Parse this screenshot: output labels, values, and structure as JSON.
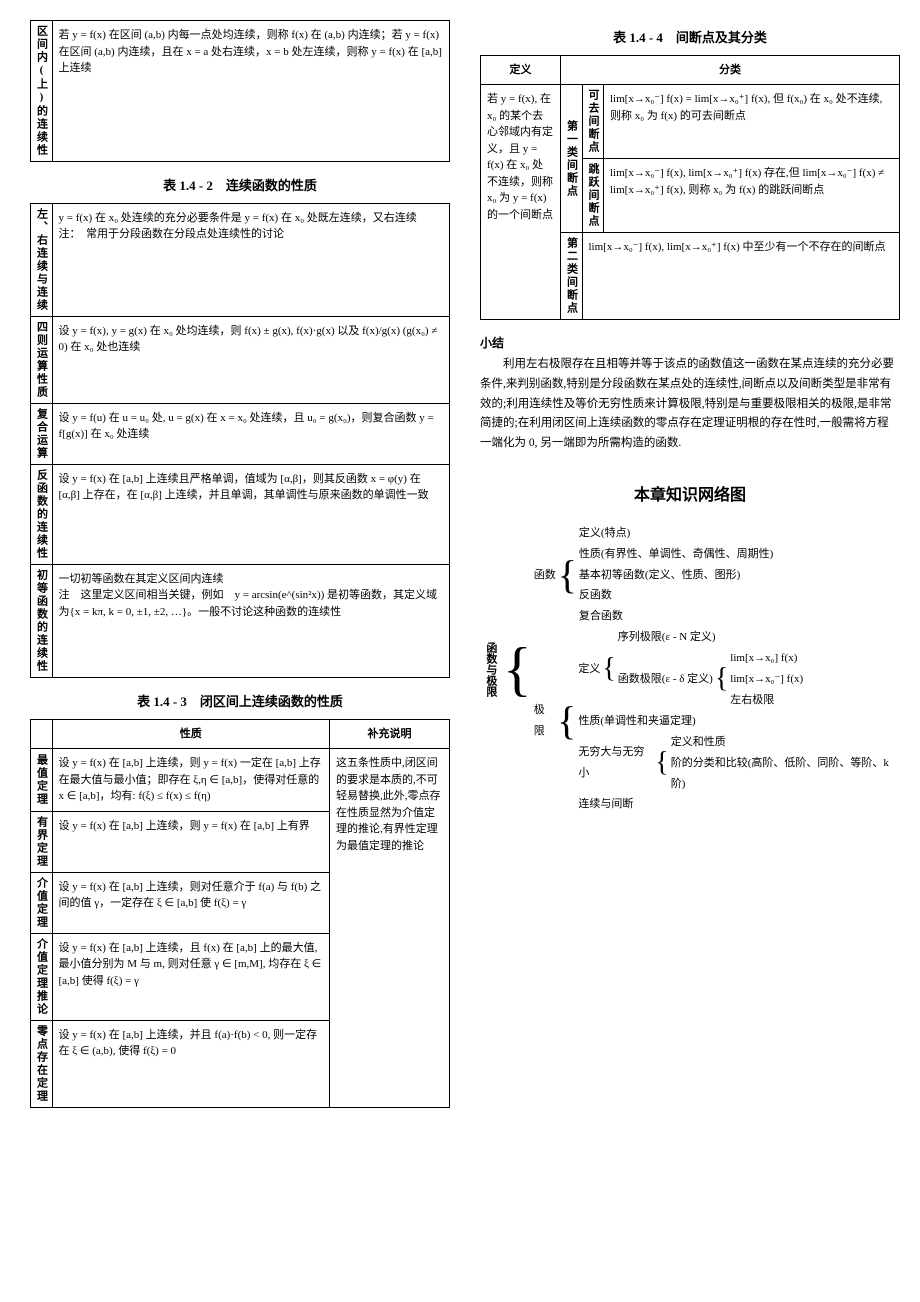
{
  "leftCol": {
    "t1": {
      "rowLabel": "区间内(上)的连续性",
      "content": "若 y = f(x) 在区间 (a,b) 内每一点处均连续，则称 f(x) 在 (a,b) 内连续；若 y = f(x) 在区间 (a,b) 内连续，且在 x = a 处右连续，x = b 处左连续，则称 y = f(x) 在 [a,b] 上连续"
    },
    "t2": {
      "caption": "表 1.4 - 2　连续函数的性质",
      "rows": [
        {
          "label": "左、右连续与连续",
          "content": "y = f(x) 在 x₀ 处连续的充分必要条件是 y = f(x) 在 x₀ 处既左连续，又右连续\n注：　常用于分段函数在分段点处连续性的讨论"
        },
        {
          "label": "四则运算性质",
          "content": "设 y = f(x), y = g(x) 在 x₀ 处均连续，则 f(x) ± g(x), f(x)·g(x) 以及 f(x)/g(x) (g(x₀) ≠ 0) 在 x₀ 处也连续"
        },
        {
          "label": "复合运算",
          "content": "设 y = f(u) 在 u = u₀ 处, u = g(x) 在 x = x₀ 处连续，且 u₀ = g(x₀)，则复合函数 y = f[g(x)] 在 x₀ 处连续"
        },
        {
          "label": "反函数的连续性",
          "content": "设 y = f(x) 在 [a,b] 上连续且严格单调，值域为 [α,β]，则其反函数 x = φ(y) 在 [α,β] 上存在，在 [α,β] 上连续，并且单调，其单调性与原来函数的单调性一致"
        },
        {
          "label": "初等函数的连续性",
          "content": "一切初等函数在其定义区间内连续\n注　这里定义区间相当关键，例如　y = arcsin(e^(sin²x)) 是初等函数，其定义域为{x = kπ, k = 0, ±1, ±2, …}。一般不讨论这种函数的连续性"
        }
      ]
    },
    "t3": {
      "caption": "表 1.4 - 3　闭区间上连续函数的性质",
      "headers": [
        "",
        "性质",
        "补充说明"
      ],
      "note": "这五条性质中,闭区间的要求是本质的,不可轻易替换,此外,零点存在性质显然为介值定理的推论,有界性定理为最值定理的推论",
      "rows": [
        {
          "label": "最值定理",
          "content": "设 y = f(x) 在 [a,b] 上连续，则 y = f(x) 一定在 [a,b] 上存在最大值与最小值；即存在 ξ,η ∈ [a,b]，使得对任意的 x ∈ [a,b]，均有: f(ξ) ≤ f(x) ≤ f(η)"
        },
        {
          "label": "有界定理",
          "content": "设 y = f(x) 在 [a,b] 上连续，则 y = f(x) 在 [a,b] 上有界"
        },
        {
          "label": "介值定理",
          "content": "设 y = f(x) 在 [a,b] 上连续，则对任意介于 f(a) 与 f(b) 之间的值 γ，一定存在 ξ ∈ [a,b] 使 f(ξ) = γ"
        },
        {
          "label": "介值定理推论",
          "content": "设 y = f(x) 在 [a,b] 上连续，且 f(x) 在 [a,b] 上的最大值,最小值分别为 M 与 m, 则对任意 γ ∈ [m,M], 均存在 ξ ∈ [a,b] 使得 f(ξ) = γ"
        },
        {
          "label": "零点存在定理",
          "content": "设 y = f(x) 在 [a,b] 上连续，并且 f(a)·f(b) < 0, 则一定存在 ξ ∈ (a,b), 使得 f(ξ) = 0"
        }
      ]
    }
  },
  "rightCol": {
    "t4": {
      "caption": "表 1.4 - 4　间断点及其分类",
      "headers": [
        "定义",
        "分类"
      ],
      "defText": "若 y = f(x), 在 x₀ 的某个去心邻域内有定义，且 y = f(x) 在 x₀ 处不连续，则称 x₀ 为 y = f(x) 的一个间断点",
      "cat1Label": "第一类间断点",
      "removable": {
        "label": "可去间断点",
        "text": "lim[x→x₀⁻] f(x) = lim[x→x₀⁺] f(x), 但 f(x₀) 在 x₀ 处不连续,则称 x₀ 为 f(x) 的可去间断点"
      },
      "jump": {
        "label": "跳跃间断点",
        "text": "lim[x→x₀⁻] f(x), lim[x→x₀⁺] f(x) 存在,但 lim[x→x₀⁻] f(x) ≠ lim[x→x₀⁺] f(x), 则称 x₀ 为 f(x) 的跳跃间断点"
      },
      "cat2Label": "第二类间断点",
      "cat2Text": "lim[x→x₀⁻] f(x), lim[x→x₀⁺] f(x) 中至少有一个不存在的间断点"
    },
    "summaryTitle": "小结",
    "summaryText": "利用左右极限存在且相等并等于该点的函数值这一函数在某点连续的充分必要条件,来判别函数,特别是分段函数在某点处的连续性,间断点以及间断类型是非常有效的;利用连续性及等价无穷性质来计算极限,特别是与重要极限相关的极限,是非常简捷的;在利用闭区间上连续函数的零点存在定理证明根的存在性时,一般需将方程一端化为 0, 另一端即为所需构造的函数.",
    "netTitle": "本章知识网络图",
    "tree": {
      "root": "函数与极限",
      "b1": {
        "label": "函数",
        "items": [
          "定义(特点)",
          "性质(有界性、单调性、奇偶性、周期性)",
          "基本初等函数(定义、性质、图形)",
          "反函数",
          "复合函数"
        ]
      },
      "b2": {
        "label": "极限",
        "def": {
          "label": "定义",
          "seq": "序列极限(ε - N 定义)",
          "fn": "函数极限(ε - δ 定义)",
          "lims": [
            "lim[x→x₀] f(x)",
            "lim[x→x₀⁻] f(x)",
            "左右极限"
          ]
        },
        "prop": "性质(单调性和夹逼定理)",
        "inf": {
          "label": "无穷大与无穷小",
          "items": [
            "定义和性质",
            "阶的分类和比较(高阶、低阶、同阶、等阶、k 阶)"
          ]
        },
        "cont": "连续与间断"
      }
    }
  }
}
